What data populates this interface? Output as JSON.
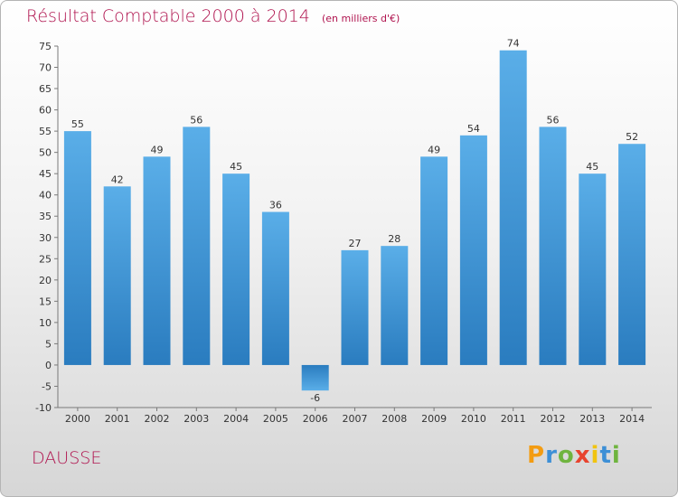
{
  "title": "Résultat Comptable 2000 à 2014",
  "subtitle": "(en milliers d'€)",
  "commune": "DAUSSE",
  "logo": {
    "letters": [
      "P",
      "r",
      "o",
      "x",
      "i",
      "t",
      "i"
    ],
    "colors": [
      "#f39c12",
      "#3d8fd6",
      "#6fb43f",
      "#e8432e",
      "#f1c40f",
      "#3d8fd6",
      "#6fb43f"
    ]
  },
  "colors": {
    "bar_light": "#5aaee8",
    "bar_dark": "#2a7cbf",
    "title": "#b0144f"
  },
  "chart_data": {
    "type": "bar",
    "title": "Résultat Comptable 2000 à 2014",
    "subtitle": "(en milliers d'€)",
    "categories": [
      "2000",
      "2001",
      "2002",
      "2003",
      "2004",
      "2005",
      "2006",
      "2007",
      "2008",
      "2009",
      "2010",
      "2011",
      "2012",
      "2013",
      "2014"
    ],
    "values": [
      55,
      42,
      49,
      56,
      45,
      36,
      -6,
      27,
      28,
      49,
      54,
      74,
      56,
      45,
      52
    ],
    "ylim": [
      -10,
      75
    ],
    "yticks": [
      -10,
      -5,
      0,
      5,
      10,
      15,
      20,
      25,
      30,
      35,
      40,
      45,
      50,
      55,
      60,
      65,
      70,
      75
    ],
    "grid": false,
    "data_labels": true
  }
}
